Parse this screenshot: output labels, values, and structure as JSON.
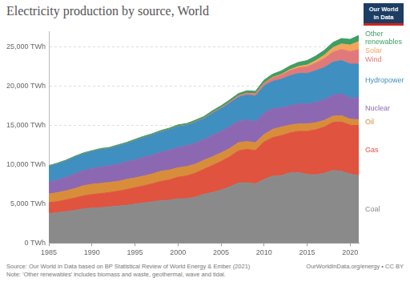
{
  "chart_data": {
    "type": "area",
    "title": "Electricity production by source, World",
    "stacked": true,
    "grid": true,
    "x": [
      1985,
      1986,
      1987,
      1988,
      1989,
      1990,
      1991,
      1992,
      1993,
      1994,
      1995,
      1996,
      1997,
      1998,
      1999,
      2000,
      2001,
      2002,
      2003,
      2004,
      2005,
      2006,
      2007,
      2008,
      2009,
      2010,
      2011,
      2012,
      2013,
      2014,
      2015,
      2016,
      2017,
      2018,
      2019,
      2020,
      2021
    ],
    "xlim": [
      1985,
      2021
    ],
    "xticks": [
      1985,
      1990,
      1995,
      2000,
      2005,
      2010,
      2015,
      2020
    ],
    "ylim": [
      0,
      27000
    ],
    "yticks": [
      {
        "value": 0,
        "label": "0 TWh"
      },
      {
        "value": 5000,
        "label": "5,000 TWh"
      },
      {
        "value": 10000,
        "label": "10,000 TWh"
      },
      {
        "value": 15000,
        "label": "15,000 TWh"
      },
      {
        "value": 20000,
        "label": "20,000 TWh"
      },
      {
        "value": 25000,
        "label": "25,000 TWh"
      }
    ],
    "series": [
      {
        "name": "Coal",
        "color": "#8a8a8a",
        "values": [
          3750,
          3850,
          4000,
          4150,
          4350,
          4450,
          4500,
          4600,
          4700,
          4800,
          4950,
          5100,
          5250,
          5400,
          5450,
          5650,
          5650,
          5850,
          6200,
          6450,
          6750,
          7150,
          7650,
          7700,
          7550,
          8100,
          8550,
          8600,
          8950,
          9000,
          8750,
          8700,
          8900,
          9250,
          9150,
          8800,
          8600
        ]
      },
      {
        "name": "Gas",
        "color": "#e0533f",
        "values": [
          1400,
          1420,
          1500,
          1580,
          1650,
          1730,
          1800,
          1830,
          1900,
          2000,
          2100,
          2180,
          2300,
          2450,
          2600,
          2750,
          2900,
          3050,
          3200,
          3450,
          3650,
          3850,
          4100,
          4250,
          4250,
          4800,
          4900,
          5100,
          5100,
          5250,
          5500,
          5750,
          5900,
          6150,
          6300,
          6250,
          6400
        ]
      },
      {
        "name": "Oil",
        "color": "#d88d3a",
        "values": [
          1100,
          1150,
          1150,
          1200,
          1300,
          1300,
          1300,
          1300,
          1250,
          1300,
          1250,
          1250,
          1250,
          1300,
          1250,
          1200,
          1200,
          1150,
          1150,
          1100,
          1100,
          1050,
          1050,
          1000,
          1000,
          950,
          1050,
          1100,
          1000,
          950,
          950,
          900,
          850,
          800,
          800,
          750,
          750
        ]
      },
      {
        "name": "Nuclear",
        "color": "#8d68b2",
        "values": [
          1500,
          1600,
          1750,
          1900,
          1950,
          2000,
          2100,
          2100,
          2200,
          2250,
          2300,
          2400,
          2400,
          2450,
          2550,
          2600,
          2650,
          2700,
          2650,
          2750,
          2750,
          2800,
          2750,
          2750,
          2700,
          2750,
          2650,
          2450,
          2500,
          2550,
          2550,
          2600,
          2650,
          2700,
          2800,
          2700,
          2800
        ]
      },
      {
        "name": "Hydropower",
        "color": "#3f8fc1",
        "values": [
          2000,
          2050,
          2050,
          2100,
          2100,
          2150,
          2200,
          2200,
          2300,
          2300,
          2450,
          2500,
          2550,
          2550,
          2600,
          2650,
          2600,
          2650,
          2650,
          2800,
          2900,
          3000,
          3050,
          3200,
          3250,
          3450,
          3500,
          3650,
          3800,
          3900,
          3900,
          4050,
          4100,
          4200,
          4250,
          4350,
          4300
        ]
      },
      {
        "name": "Wind",
        "color": "#e07a7a",
        "values": [
          0,
          0,
          0,
          0,
          1,
          4,
          4,
          5,
          6,
          7,
          8,
          10,
          12,
          16,
          21,
          31,
          38,
          52,
          63,
          85,
          104,
          133,
          171,
          220,
          277,
          342,
          437,
          524,
          641,
          712,
          831,
          962,
          1140,
          1270,
          1420,
          1590,
          1860
        ]
      },
      {
        "name": "Solar",
        "color": "#f3a55c",
        "values": [
          0,
          0,
          0,
          0,
          0,
          0,
          0,
          0,
          0,
          0,
          0,
          0,
          0,
          0,
          0,
          1,
          1,
          2,
          2,
          3,
          4,
          6,
          8,
          12,
          20,
          32,
          64,
          100,
          139,
          190,
          256,
          328,
          444,
          584,
          703,
          846,
          1030
        ]
      },
      {
        "name": "Other renewables",
        "color": "#3f9e62",
        "values": [
          120,
          125,
          130,
          135,
          140,
          145,
          150,
          155,
          160,
          170,
          175,
          180,
          185,
          190,
          195,
          200,
          205,
          215,
          230,
          240,
          255,
          270,
          290,
          305,
          325,
          380,
          410,
          450,
          480,
          520,
          560,
          590,
          620,
          660,
          690,
          720,
          760
        ]
      }
    ]
  },
  "logo": [
    "Our World",
    "in Data"
  ],
  "source": "Source: Our World in Data based on BP Statistical Review of World Energy & Ember (2021)",
  "note": "Note: 'Other renewables' includes biomass and waste, geothermal, wave and tidal.",
  "credit": "OurWorldInData.org/energy • CC BY"
}
